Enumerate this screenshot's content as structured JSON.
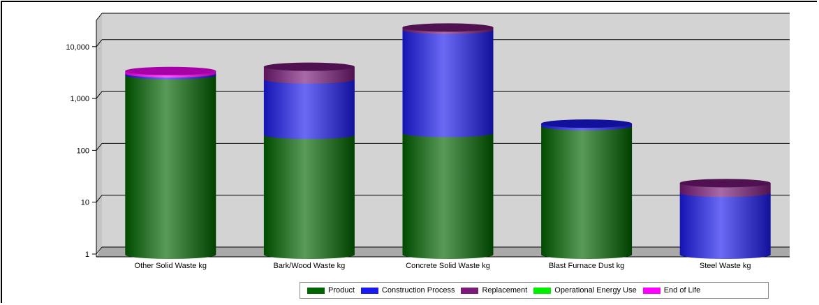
{
  "chart_data": {
    "type": "bar",
    "stacked": true,
    "bar_style": "cylinder",
    "yscale": "log",
    "ylim": [
      1,
      20000
    ],
    "yticks": [
      1,
      10,
      100,
      1000,
      10000
    ],
    "ytick_labels": [
      "1",
      "10",
      "100",
      "1,000",
      "10,000"
    ],
    "categories": [
      "Other Solid Waste kg",
      "Bark/Wood Waste kg",
      "Concrete Solid Waste kg",
      "Blast Furnace Dust kg",
      "Steel Waste kg"
    ],
    "series": [
      {
        "name": "Product",
        "color": "#006400",
        "values": [
          2400,
          170,
          185,
          250,
          0
        ]
      },
      {
        "name": "Construction Process",
        "color": "#1a1aee",
        "values": [
          200,
          1830,
          17815,
          30,
          13
        ]
      },
      {
        "name": "Replacement",
        "color": "#7b1a7b",
        "values": [
          0,
          1500,
          2000,
          0,
          7
        ]
      },
      {
        "name": "Operational Energy Use",
        "color": "#00ee00",
        "values": [
          0,
          0,
          0,
          0,
          0
        ]
      },
      {
        "name": "End of Life",
        "color": "#ff00ff",
        "values": [
          300,
          0,
          0,
          0,
          0
        ]
      }
    ],
    "grid": true,
    "plot_background": "#d3d3d3",
    "legend_position": "bottom-right",
    "title": "",
    "xlabel": "",
    "ylabel": ""
  }
}
